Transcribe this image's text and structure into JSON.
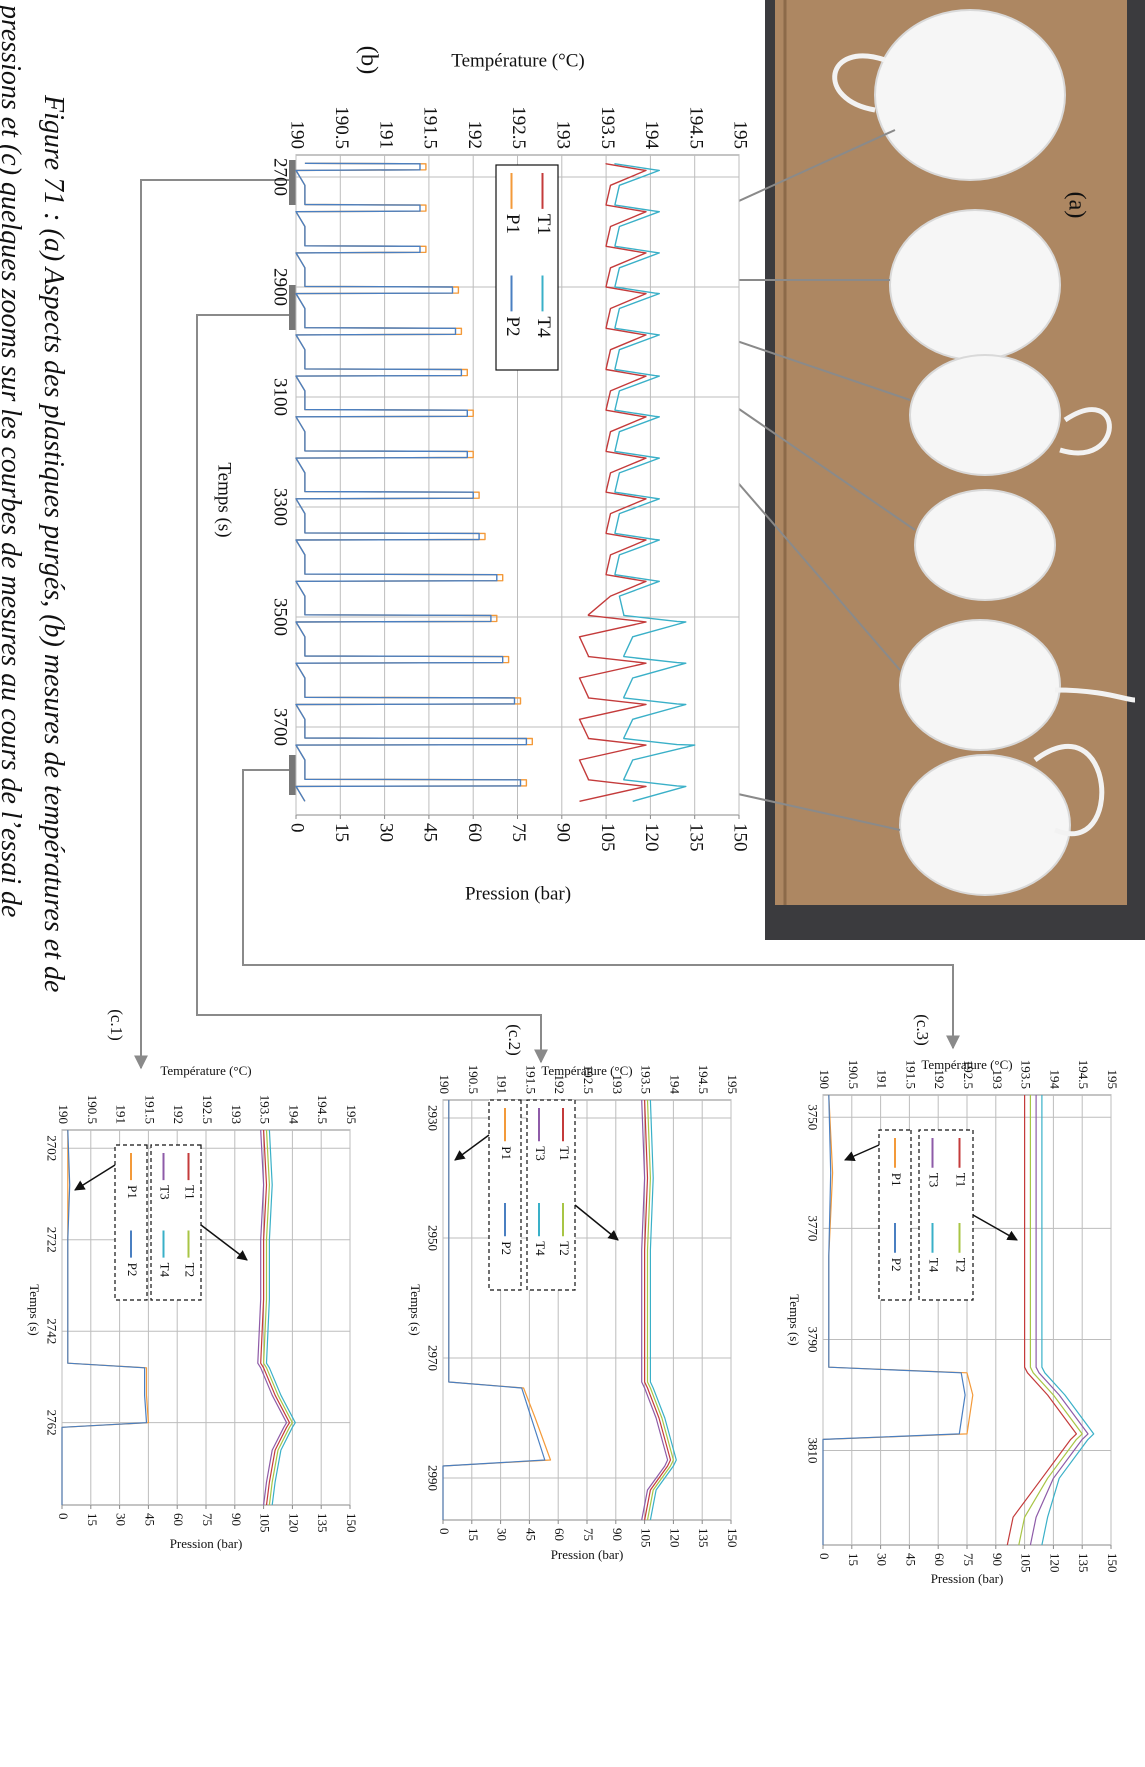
{
  "photo": {
    "label": "(a)"
  },
  "chart_data": [
    {
      "type": "line",
      "title": "(b)",
      "x_label": "Temps (s)",
      "y_label": "Température (°C)",
      "y2_label": "Pression (bar)",
      "x": [
        2675,
        2676,
        2687,
        2688,
        2715,
        2750,
        2751,
        2762,
        2763,
        2790,
        2825,
        2826,
        2837,
        2838,
        2865,
        2899,
        2900,
        2911,
        2912,
        2939,
        2974,
        2975,
        2986,
        2987,
        3014,
        3049,
        3050,
        3061,
        3062,
        3089,
        3123,
        3124,
        3135,
        3136,
        3163,
        3198,
        3199,
        3210,
        3211,
        3238,
        3272,
        3273,
        3284,
        3285,
        3312,
        3347,
        3348,
        3359,
        3360,
        3387,
        3422,
        3423,
        3434,
        3435,
        3462,
        3496,
        3497,
        3508,
        3509,
        3536,
        3571,
        3572,
        3583,
        3584,
        3611,
        3646,
        3647,
        3658,
        3659,
        3686,
        3720,
        3721,
        3732,
        3733,
        3760,
        3795,
        3796,
        3807,
        3808,
        3835
      ],
      "series": [
        {
          "name": "T1",
          "color": "#c43b3b",
          "values": [
            193.5,
            193.5,
            193.9,
            193.95,
            193.55,
            193.5,
            193.5,
            193.9,
            193.95,
            193.55,
            193.5,
            193.5,
            193.9,
            193.95,
            193.55,
            193.5,
            193.5,
            193.9,
            193.95,
            193.55,
            193.5,
            193.5,
            193.9,
            193.95,
            193.55,
            193.5,
            193.5,
            193.9,
            193.95,
            193.55,
            193.5,
            193.5,
            193.9,
            193.95,
            193.55,
            193.5,
            193.5,
            193.9,
            193.95,
            193.55,
            193.5,
            193.5,
            193.9,
            193.95,
            193.55,
            193.5,
            193.5,
            193.9,
            193.95,
            193.55,
            193.5,
            193.5,
            193.9,
            193.95,
            193.55,
            193.3,
            193.3,
            193.9,
            193.95,
            193.2,
            193.3,
            193.3,
            193.9,
            193.95,
            193.2,
            193.3,
            193.3,
            193.9,
            193.95,
            193.2,
            193.3,
            193.3,
            193.9,
            193.95,
            193.2,
            193.3,
            193.3,
            193.9,
            193.95,
            193.2
          ]
        },
        {
          "name": "T4",
          "color": "#3ab0c8",
          "values": [
            193.6,
            193.6,
            194.05,
            194.1,
            193.65,
            193.6,
            193.6,
            194.05,
            194.1,
            193.65,
            193.6,
            193.6,
            194.05,
            194.1,
            193.65,
            193.6,
            193.6,
            194.05,
            194.1,
            193.65,
            193.6,
            193.6,
            194.05,
            194.1,
            193.65,
            193.6,
            193.6,
            194.05,
            194.1,
            193.65,
            193.6,
            193.6,
            194.05,
            194.1,
            193.65,
            193.6,
            193.6,
            194.05,
            194.1,
            193.65,
            193.6,
            193.6,
            194.05,
            194.1,
            193.65,
            193.6,
            193.6,
            194.05,
            194.1,
            193.65,
            193.6,
            193.6,
            194.05,
            194.1,
            193.65,
            193.7,
            193.7,
            194.3,
            194.4,
            193.8,
            193.7,
            193.7,
            194.3,
            194.4,
            193.8,
            193.7,
            193.7,
            194.3,
            194.4,
            193.8,
            193.7,
            193.7,
            194.3,
            194.5,
            193.8,
            193.7,
            193.7,
            194.3,
            194.4,
            193.8
          ]
        },
        {
          "name": "P1",
          "color": "#f39a3a",
          "axis": "y2",
          "values": [
            3,
            44,
            44,
            0,
            3,
            3,
            44,
            44,
            0,
            3,
            3,
            44,
            44,
            0,
            3,
            3,
            55,
            55,
            0,
            3,
            3,
            56,
            56,
            0,
            3,
            3,
            58,
            58,
            0,
            3,
            3,
            60,
            60,
            0,
            3,
            3,
            60,
            60,
            0,
            3,
            3,
            62,
            62,
            0,
            3,
            3,
            64,
            64,
            0,
            3,
            3,
            70,
            70,
            0,
            3,
            3,
            68,
            68,
            0,
            3,
            3,
            72,
            72,
            0,
            3,
            3,
            76,
            76,
            0,
            3,
            3,
            80,
            80,
            0,
            3,
            3,
            78,
            78,
            0,
            3
          ]
        },
        {
          "name": "P2",
          "color": "#4a7fc1",
          "axis": "y2",
          "values": [
            3,
            42,
            42,
            0,
            3,
            3,
            42,
            42,
            0,
            3,
            3,
            42,
            42,
            0,
            3,
            3,
            53,
            53,
            0,
            3,
            3,
            54,
            54,
            0,
            3,
            3,
            56,
            56,
            0,
            3,
            3,
            58,
            58,
            0,
            3,
            3,
            58,
            58,
            0,
            3,
            3,
            60,
            60,
            0,
            3,
            3,
            62,
            62,
            0,
            3,
            3,
            68,
            68,
            0,
            3,
            3,
            66,
            66,
            0,
            3,
            3,
            70,
            70,
            0,
            3,
            3,
            74,
            74,
            0,
            3,
            3,
            78,
            78,
            0,
            3,
            3,
            76,
            76,
            0,
            3
          ]
        }
      ],
      "xlim": [
        2660,
        3860
      ],
      "xticks": [
        2700,
        2900,
        3100,
        3300,
        3500,
        3700
      ],
      "ylim": [
        190,
        195
      ],
      "yticks": [
        190,
        190.5,
        191,
        191.5,
        192,
        192.5,
        193,
        193.5,
        194,
        194.5,
        195
      ],
      "y2lim": [
        0,
        150
      ],
      "y2ticks": [
        0,
        15,
        30,
        45,
        60,
        75,
        90,
        105,
        120,
        135,
        150
      ],
      "grid": true
    },
    {
      "type": "line",
      "title": "(c.1)",
      "x_label": "Temps (s)",
      "y_label": "Température (°C)",
      "y2_label": "Pression (bar)",
      "x": [
        2698,
        2710,
        2722,
        2735,
        2749,
        2750,
        2756,
        2762,
        2763,
        2768,
        2775,
        2780
      ],
      "series": [
        {
          "name": "T1",
          "color": "#c43b3b",
          "values": [
            193.5,
            193.55,
            193.5,
            193.5,
            193.45,
            193.5,
            193.7,
            193.95,
            193.9,
            193.7,
            193.6,
            193.55
          ]
        },
        {
          "name": "T2",
          "color": "#a8c545",
          "values": [
            193.55,
            193.6,
            193.55,
            193.55,
            193.5,
            193.55,
            193.75,
            194.0,
            193.95,
            193.75,
            193.65,
            193.6
          ]
        },
        {
          "name": "T3",
          "color": "#8e5ba8",
          "values": [
            193.45,
            193.5,
            193.45,
            193.45,
            193.4,
            193.45,
            193.65,
            193.9,
            193.85,
            193.65,
            193.55,
            193.5
          ]
        },
        {
          "name": "T4",
          "color": "#3ab0c8",
          "values": [
            193.6,
            193.65,
            193.6,
            193.6,
            193.55,
            193.6,
            193.8,
            194.05,
            194.0,
            193.8,
            193.7,
            193.65
          ]
        },
        {
          "name": "P1",
          "color": "#f39a3a",
          "axis": "y2",
          "values": [
            3,
            3,
            3,
            3,
            3,
            44,
            44,
            45,
            0,
            0,
            0,
            0
          ]
        },
        {
          "name": "P2",
          "color": "#4a7fc1",
          "axis": "y2",
          "values": [
            3,
            4,
            3,
            3,
            3,
            43,
            43,
            44,
            0,
            0,
            0,
            0
          ]
        }
      ],
      "xlim": [
        2698,
        2780
      ],
      "xticks": [
        2702,
        2722,
        2742,
        2762
      ],
      "ylim": [
        190,
        195
      ],
      "yticks": [
        190,
        190.5,
        191,
        191.5,
        192,
        192.5,
        193,
        193.5,
        194,
        194.5,
        195
      ],
      "y2lim": [
        0,
        150
      ],
      "y2ticks": [
        0,
        15,
        30,
        45,
        60,
        75,
        90,
        105,
        120,
        135,
        150
      ],
      "grid": true
    },
    {
      "type": "line",
      "title": "(c.2)",
      "x_label": "Temps (s)",
      "y_label": "Température (°C)",
      "y2_label": "Pression (bar)",
      "x": [
        2927,
        2940,
        2952,
        2965,
        2974,
        2975,
        2980,
        2987,
        2988,
        2992,
        2997
      ],
      "series": [
        {
          "name": "T1",
          "color": "#c43b3b",
          "values": [
            193.5,
            193.55,
            193.5,
            193.5,
            193.5,
            193.55,
            193.75,
            193.95,
            193.9,
            193.6,
            193.5
          ]
        },
        {
          "name": "T2",
          "color": "#a8c545",
          "values": [
            193.55,
            193.6,
            193.55,
            193.55,
            193.55,
            193.6,
            193.8,
            194.0,
            193.95,
            193.65,
            193.55
          ]
        },
        {
          "name": "T3",
          "color": "#8e5ba8",
          "values": [
            193.45,
            193.5,
            193.45,
            193.45,
            193.45,
            193.5,
            193.7,
            193.9,
            193.85,
            193.55,
            193.45
          ]
        },
        {
          "name": "T4",
          "color": "#3ab0c8",
          "values": [
            193.6,
            193.65,
            193.6,
            193.6,
            193.6,
            193.65,
            193.85,
            194.05,
            194.0,
            193.7,
            193.6
          ]
        },
        {
          "name": "P1",
          "color": "#f39a3a",
          "axis": "y2",
          "values": [
            3,
            3,
            3,
            3,
            3,
            42,
            48,
            56,
            0,
            0,
            0
          ]
        },
        {
          "name": "P2",
          "color": "#4a7fc1",
          "axis": "y2",
          "values": [
            3,
            3,
            3,
            3,
            3,
            41,
            46,
            53,
            0,
            0,
            0
          ]
        }
      ],
      "xlim": [
        2927,
        2997
      ],
      "xticks": [
        2930,
        2950,
        2970,
        2990
      ],
      "ylim": [
        190,
        195
      ],
      "yticks": [
        190,
        190.5,
        191,
        191.5,
        192,
        192.5,
        193,
        193.5,
        194,
        194.5,
        195
      ],
      "y2lim": [
        0,
        150
      ],
      "y2ticks": [
        0,
        15,
        30,
        45,
        60,
        75,
        90,
        105,
        120,
        135,
        150
      ],
      "grid": true
    },
    {
      "type": "line",
      "title": "(c.3)",
      "x_label": "Temps (s)",
      "y_label": "Température (°C)",
      "y2_label": "Pression (bar)",
      "x": [
        3746,
        3760,
        3775,
        3790,
        3795,
        3796,
        3800,
        3807,
        3808,
        3815,
        3822,
        3827
      ],
      "series": [
        {
          "name": "T1",
          "color": "#c43b3b",
          "values": [
            193.5,
            193.5,
            193.5,
            193.5,
            193.5,
            193.55,
            193.9,
            194.4,
            194.3,
            193.8,
            193.3,
            193.2
          ]
        },
        {
          "name": "T2",
          "color": "#a8c545",
          "values": [
            193.6,
            193.6,
            193.6,
            193.6,
            193.6,
            193.65,
            194.0,
            194.5,
            194.4,
            193.9,
            193.5,
            193.4
          ]
        },
        {
          "name": "T3",
          "color": "#8e5ba8",
          "values": [
            193.7,
            193.7,
            193.7,
            193.7,
            193.7,
            193.75,
            194.1,
            194.6,
            194.5,
            194.0,
            193.7,
            193.6
          ]
        },
        {
          "name": "T4",
          "color": "#3ab0c8",
          "values": [
            193.8,
            193.8,
            193.8,
            193.8,
            193.8,
            193.85,
            194.2,
            194.7,
            194.6,
            194.1,
            193.9,
            193.8
          ]
        },
        {
          "name": "P1",
          "color": "#f39a3a",
          "axis": "y2",
          "values": [
            3,
            5,
            3,
            3,
            3,
            75,
            78,
            75,
            0,
            0,
            0,
            0
          ]
        },
        {
          "name": "P2",
          "color": "#4a7fc1",
          "axis": "y2",
          "values": [
            3,
            4,
            3,
            3,
            3,
            72,
            74,
            71,
            0,
            0,
            0,
            0
          ]
        }
      ],
      "xlim": [
        3746,
        3827
      ],
      "xticks": [
        3750,
        3770,
        3790,
        3810
      ],
      "ylim": [
        190,
        195
      ],
      "yticks": [
        190,
        190.5,
        191,
        191.5,
        192,
        192.5,
        193,
        193.5,
        194,
        194.5,
        195
      ],
      "y2lim": [
        0,
        150
      ],
      "y2ticks": [
        0,
        15,
        30,
        45,
        60,
        75,
        90,
        105,
        120,
        135,
        150
      ],
      "grid": true
    }
  ],
  "caption": [
    "Figure 71 : (a) Aspects des plastiques purgés, (b) mesures de températures et de",
    "pressions et (c) quelques zooms sur les courbes de mesures au cours de l’essai de"
  ]
}
